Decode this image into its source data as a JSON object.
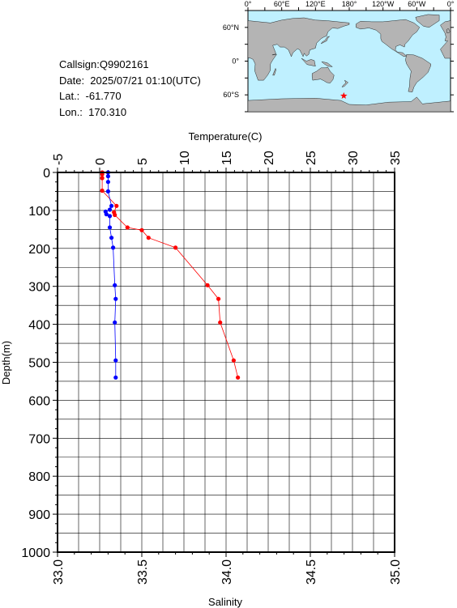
{
  "info": {
    "callsign": "Callsign:Q9902161",
    "date": "Date:  2025/07/21 01:10(UTC)",
    "lat": "Lat.:  -61.770",
    "lon": "Lon.:  170.310"
  },
  "map": {
    "top_labels": [
      "0°",
      "60°E",
      "120°E",
      "180°",
      "120°W",
      "60°W",
      "0°"
    ],
    "right_labels": [
      "60°N",
      "0°",
      "60°S"
    ],
    "ocean_color": "#bff0ff",
    "land_color": "#b4b4b4",
    "marker": {
      "lat": -61.77,
      "lon": 170.31,
      "color": "#ff0000",
      "symbol": "star"
    }
  },
  "chart_data": {
    "type": "line",
    "y_axis": {
      "label": "Depth(m)",
      "range": [
        0,
        1000
      ],
      "inverted": true,
      "ticks": [
        "0",
        "100",
        "200",
        "300",
        "400",
        "500",
        "600",
        "700",
        "800",
        "900",
        "1000"
      ]
    },
    "x_axis_top": {
      "label": "Temperature(C)",
      "range": [
        -5,
        35
      ],
      "ticks": [
        "-5",
        "0",
        "5",
        "10",
        "15",
        "20",
        "25",
        "30",
        "35"
      ]
    },
    "x_axis_bottom": {
      "label": "Salinity",
      "range": [
        33.0,
        35.0
      ],
      "ticks": [
        "33.0",
        "33.5",
        "34.0",
        "34.5",
        "35.0"
      ]
    },
    "grid": true,
    "series": [
      {
        "axis": "temperature",
        "color": "#ff0000",
        "points": [
          {
            "x": 0.3,
            "y": 0
          },
          {
            "x": 0.3,
            "y": 5
          },
          {
            "x": 0.3,
            "y": 15
          },
          {
            "x": 0.3,
            "y": 48
          },
          {
            "x": 2.0,
            "y": 88
          },
          {
            "x": 1.7,
            "y": 105
          },
          {
            "x": 1.8,
            "y": 112
          },
          {
            "x": 3.3,
            "y": 145
          },
          {
            "x": 5.0,
            "y": 152
          },
          {
            "x": 5.8,
            "y": 172
          },
          {
            "x": 9.0,
            "y": 198
          },
          {
            "x": 12.8,
            "y": 297
          },
          {
            "x": 14.1,
            "y": 333
          },
          {
            "x": 14.3,
            "y": 395
          },
          {
            "x": 15.9,
            "y": 495
          },
          {
            "x": 16.4,
            "y": 540
          }
        ]
      },
      {
        "axis": "salinity",
        "color": "#0000ff",
        "points": [
          {
            "x": 33.3,
            "y": 0
          },
          {
            "x": 33.3,
            "y": 10
          },
          {
            "x": 33.3,
            "y": 25
          },
          {
            "x": 33.3,
            "y": 50
          },
          {
            "x": 33.32,
            "y": 88
          },
          {
            "x": 33.31,
            "y": 98
          },
          {
            "x": 33.285,
            "y": 103
          },
          {
            "x": 33.29,
            "y": 110
          },
          {
            "x": 33.31,
            "y": 115
          },
          {
            "x": 33.31,
            "y": 145
          },
          {
            "x": 33.32,
            "y": 172
          },
          {
            "x": 33.33,
            "y": 198
          },
          {
            "x": 33.34,
            "y": 297
          },
          {
            "x": 33.345,
            "y": 333
          },
          {
            "x": 33.34,
            "y": 395
          },
          {
            "x": 33.345,
            "y": 495
          },
          {
            "x": 33.345,
            "y": 540
          }
        ]
      }
    ]
  }
}
